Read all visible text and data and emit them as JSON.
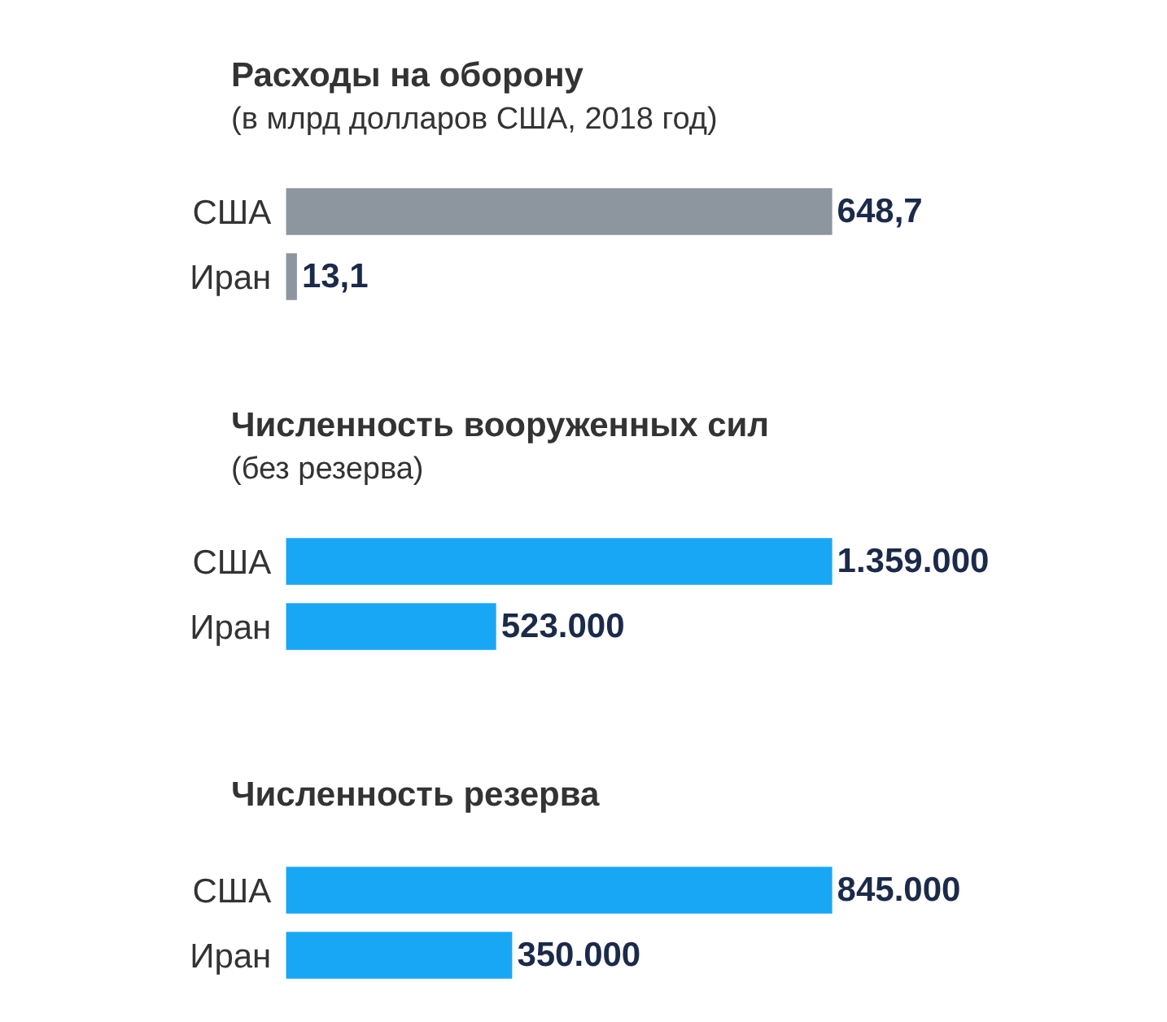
{
  "chart_data": [
    {
      "type": "bar",
      "orientation": "horizontal",
      "title": "Расходы на оборону",
      "subtitle": "(в млрд долларов США, 2018 год)",
      "categories": [
        "США",
        "Иран"
      ],
      "values": [
        648.7,
        13.1
      ],
      "value_labels": [
        "648,7",
        "13,1"
      ],
      "color": "#8d959e",
      "tick_labels": "y"
    },
    {
      "type": "bar",
      "orientation": "horizontal",
      "title": "Численность вооруженных сил",
      "subtitle": "(без резерва)",
      "categories": [
        "США",
        "Иран"
      ],
      "values": [
        1359000,
        523000
      ],
      "value_labels": [
        "1.359.000",
        "523.000"
      ],
      "color": "#18a7f5",
      "tick_labels": "y"
    },
    {
      "type": "bar",
      "orientation": "horizontal",
      "title": "Численность резерва",
      "categories": [
        "США",
        "Иран"
      ],
      "values": [
        845000,
        350000
      ],
      "value_labels": [
        "845.000",
        "350.000"
      ],
      "color": "#18a7f5",
      "tick_labels": "y"
    }
  ]
}
